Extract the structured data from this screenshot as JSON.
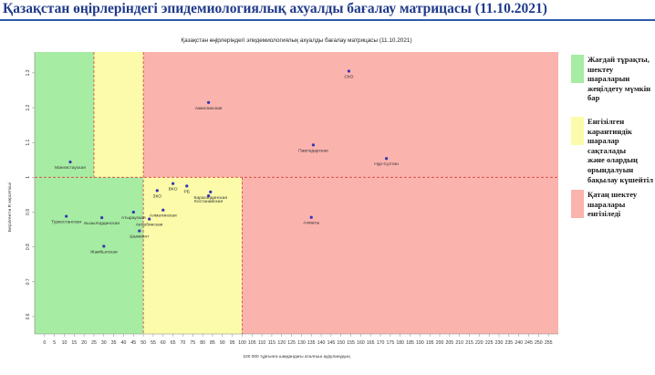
{
  "page": {
    "title": "Қазақстан өңірлеріндегі эпидемиологиялық ахуалды бағалау матрицасы  (11.10.2021)"
  },
  "legend": [
    {
      "color": "#a6eca2",
      "text": "Жағдай тұрақты,\nшектеу шараларын\nжеңілдету мүмкін\nбар"
    },
    {
      "color": "#fbfba9",
      "text": "Енгізілген\nкарантиндік\nшаралар сақталады\nжәне олардың\nорындалуын\nбақылау күшейтіл"
    },
    {
      "color": "#fbb3ae",
      "text": "Қатаң шектеу\nшаралары\nенгізіледі"
    }
  ],
  "chart_data": {
    "type": "scatter",
    "title": "Қазақстан өңірлеріндегі эпидемиологиялық ахуалды бағалау матрицасы  (11.10.2021)",
    "xlabel": "100 000 тұрғынға шаққандағы аталғыш ауруланудың",
    "ylabel": "Берілгентін R көрсеткіші",
    "xlim": [
      -5,
      260
    ],
    "ylim": [
      0.55,
      1.36
    ],
    "xticks": [
      0,
      5,
      10,
      15,
      20,
      25,
      30,
      35,
      40,
      45,
      50,
      55,
      60,
      65,
      70,
      75,
      80,
      85,
      90,
      95,
      100,
      105,
      110,
      115,
      120,
      125,
      130,
      135,
      140,
      145,
      150,
      155,
      160,
      165,
      170,
      175,
      180,
      185,
      190,
      195,
      200,
      205,
      210,
      215,
      220,
      225,
      230,
      235,
      240,
      245,
      250,
      255
    ],
    "yticks": [
      0.6,
      0.7,
      0.8,
      0.9,
      1.0,
      1.1,
      1.2,
      1.3
    ],
    "threshold_lines": {
      "x": [
        25,
        50,
        100
      ],
      "y": 1.0
    },
    "zones": [
      {
        "x": [
          -5,
          25
        ],
        "y": [
          1.0,
          1.36
        ],
        "color": "#a6eca2"
      },
      {
        "x": [
          25,
          50
        ],
        "y": [
          1.0,
          1.36
        ],
        "color": "#fbfba9"
      },
      {
        "x": [
          50,
          260
        ],
        "y": [
          1.0,
          1.36
        ],
        "color": "#fbb3ae"
      },
      {
        "x": [
          -5,
          50
        ],
        "y": [
          0.55,
          1.0
        ],
        "color": "#a6eca2"
      },
      {
        "x": [
          50,
          100
        ],
        "y": [
          0.55,
          1.0
        ],
        "color": "#fbfba9"
      },
      {
        "x": [
          100,
          260
        ],
        "y": [
          0.55,
          1.0
        ],
        "color": "#fbb3ae"
      }
    ],
    "points": [
      {
        "label": "СКО",
        "x": 154,
        "y": 1.305
      },
      {
        "label": "Акмолинская",
        "x": 83,
        "y": 1.215
      },
      {
        "label": "Павлодарская",
        "x": 136,
        "y": 1.093
      },
      {
        "label": "Нур-Султан",
        "x": 173,
        "y": 1.054
      },
      {
        "label": "Мангистауская",
        "x": 13,
        "y": 1.044
      },
      {
        "label": "ЗКО",
        "x": 57,
        "y": 0.962
      },
      {
        "label": "ВКО",
        "x": 65,
        "y": 0.982
      },
      {
        "label": "РБ",
        "x": 72,
        "y": 0.975
      },
      {
        "label": "Карагандинская",
        "x": 84,
        "y": 0.958
      },
      {
        "label": "Костанайская",
        "x": 83,
        "y": 0.947
      },
      {
        "label": "Туркестанская",
        "x": 11,
        "y": 0.888
      },
      {
        "label": "Атырауская",
        "x": 45,
        "y": 0.9
      },
      {
        "label": "Кызылординская",
        "x": 29,
        "y": 0.884
      },
      {
        "label": "Шымкент",
        "x": 48,
        "y": 0.846
      },
      {
        "label": "Алматинская",
        "x": 60,
        "y": 0.906
      },
      {
        "label": "Актюбинская",
        "x": 53,
        "y": 0.88
      },
      {
        "label": "Алматы",
        "x": 135,
        "y": 0.885
      },
      {
        "label": "Жамбылская",
        "x": 30,
        "y": 0.802
      }
    ]
  }
}
